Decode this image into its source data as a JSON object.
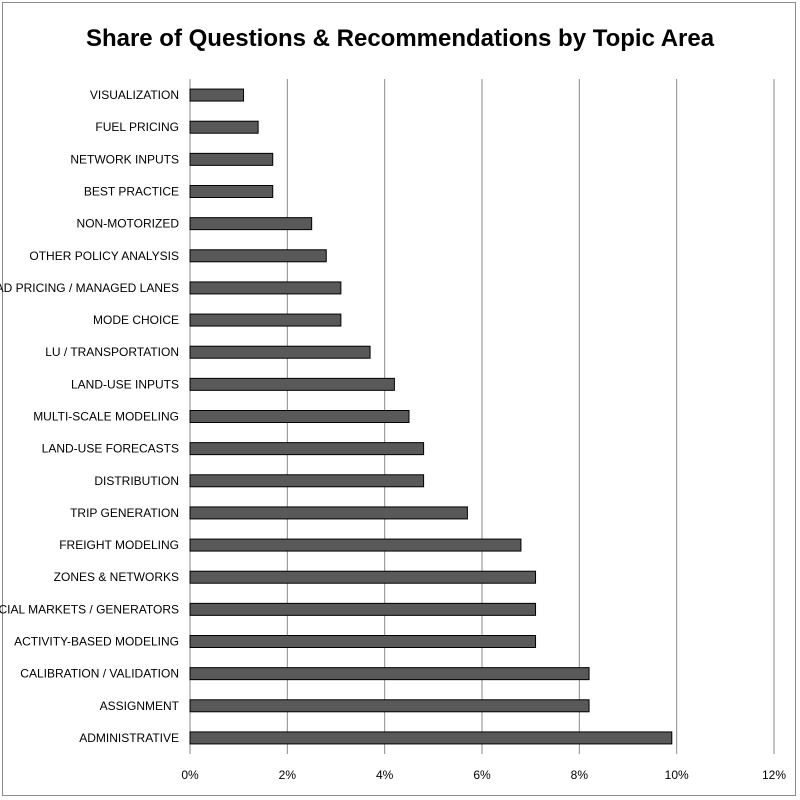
{
  "chart_data": {
    "type": "bar",
    "orientation": "horizontal",
    "title": "Share of Questions & Recommendations by Topic Area",
    "xlabel": "",
    "ylabel": "",
    "xlim": [
      0,
      12
    ],
    "x_ticks": [
      "0%",
      "2%",
      "4%",
      "6%",
      "8%",
      "10%",
      "12%"
    ],
    "grid": true,
    "legend": "none",
    "bar_color": "#595959",
    "categories": [
      "VISUALIZATION",
      "FUEL PRICING",
      "NETWORK INPUTS",
      "BEST PRACTICE",
      "NON-MOTORIZED",
      "OTHER POLICY ANALYSIS",
      "ROAD PRICING / MANAGED LANES",
      "MODE CHOICE",
      "LU / TRANSPORTATION",
      "LAND-USE INPUTS",
      "MULTI-SCALE MODELING",
      "LAND-USE FORECASTS",
      "DISTRIBUTION",
      "TRIP GENERATION",
      "FREIGHT MODELING",
      "ZONES & NETWORKS",
      "SPECIAL MARKETS / GENERATORS",
      "ACTIVITY-BASED MODELING",
      "CALIBRATION / VALIDATION",
      "ASSIGNMENT",
      "ADMINISTRATIVE"
    ],
    "values": [
      1.1,
      1.4,
      1.7,
      1.7,
      2.5,
      2.8,
      3.1,
      3.1,
      3.7,
      4.2,
      4.5,
      4.8,
      4.8,
      5.7,
      6.8,
      7.1,
      7.1,
      7.1,
      8.2,
      8.2,
      9.9
    ]
  }
}
